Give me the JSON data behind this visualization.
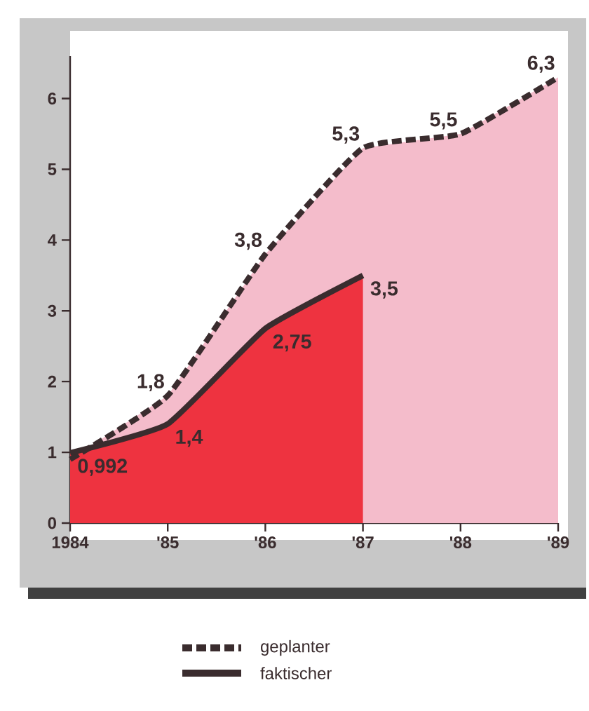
{
  "chart_data": {
    "type": "area",
    "categories": [
      "1984",
      "'85",
      "'86",
      "'87",
      "'88",
      "'89"
    ],
    "series": [
      {
        "name": "geplanter",
        "color": "#f4bccb",
        "line_style": "dashed",
        "values": [
          0.9,
          1.8,
          3.8,
          5.3,
          5.5,
          6.3
        ],
        "value_labels": [
          null,
          "1,8",
          "3,8",
          "5,3",
          "5,5",
          "6,3"
        ]
      },
      {
        "name": "faktischer",
        "color": "#ee3340",
        "line_style": "solid",
        "values": [
          0.992,
          1.4,
          2.75,
          3.5,
          null,
          null
        ],
        "value_labels": [
          "0,992",
          "1,4",
          "2,75",
          "3,5",
          null,
          null
        ]
      }
    ],
    "ylim": [
      0,
      6.6
    ],
    "yticks": [
      0,
      1,
      2,
      3,
      4,
      5,
      6
    ],
    "grid": false,
    "legend": "bottom"
  }
}
